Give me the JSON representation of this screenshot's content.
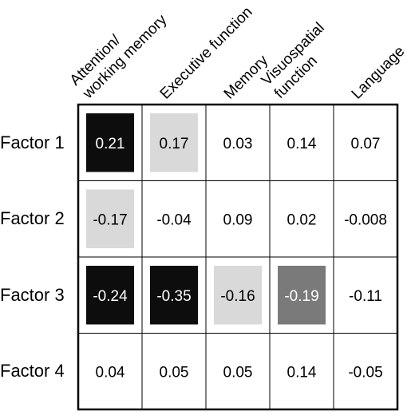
{
  "chart_data": {
    "type": "heatmap",
    "columns": [
      "Attention/\nworking memory",
      "Executive function",
      "Memory",
      "Visuospatial\nfunction",
      "Language"
    ],
    "rows": [
      "Factor 1",
      "Factor 2",
      "Factor 3",
      "Factor 4"
    ],
    "values": [
      [
        "0.21",
        "0.17",
        "0.03",
        "0.14",
        "0.07"
      ],
      [
        "-0.17",
        "-0.04",
        "0.09",
        "0.02",
        "-0.008"
      ],
      [
        "-0.24",
        "-0.35",
        "-0.16",
        "-0.19",
        "-0.11"
      ],
      [
        "0.04",
        "0.05",
        "0.05",
        "0.14",
        "-0.05"
      ]
    ],
    "highlight_levels": [
      [
        "dark",
        "light",
        "none",
        "none",
        "none"
      ],
      [
        "light",
        "none",
        "none",
        "none",
        "none"
      ],
      [
        "dark",
        "dark",
        "light",
        "medium",
        "none"
      ],
      [
        "none",
        "none",
        "none",
        "none",
        "none"
      ]
    ],
    "level_colors": {
      "dark": "#0d0d0d",
      "medium": "#7a7a7a",
      "light": "#d9d9d9",
      "none": "#ffffff"
    }
  }
}
